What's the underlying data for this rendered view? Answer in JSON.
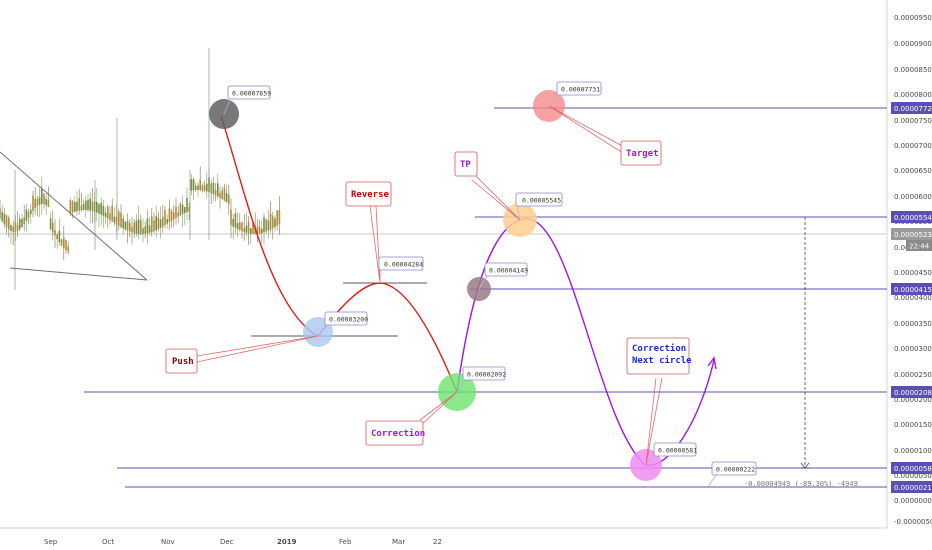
{
  "chart_data": {
    "type": "line",
    "title": "",
    "y_axis": {
      "position": "right",
      "ticks": [
        "0.00009500",
        "0.00009000",
        "0.00008500",
        "0.00008000",
        "0.00007500",
        "0.00007000",
        "0.00006500",
        "0.00006000",
        "0.00005500",
        "0.00005000",
        "0.00004500",
        "0.00004000",
        "0.00003500",
        "0.00003000",
        "0.00002500",
        "0.00002000",
        "0.00001500",
        "0.00001000",
        "0.00000500",
        "0.00000000",
        "-0.00000500"
      ]
    },
    "x_axis": {
      "ticks": [
        "Sep",
        "Oct",
        "Nov",
        "Dec",
        "2019",
        "Feb",
        "Mar",
        "22"
      ]
    },
    "price_badges": [
      {
        "value": "0.00007724",
        "color": "#5b4fb5"
      },
      {
        "value": "0.00005548",
        "color": "#5b4fb5"
      },
      {
        "value": "0.00005231",
        "color": "#9a9a9a"
      },
      {
        "value": "22:44",
        "color": "#8a8a8a"
      },
      {
        "value": "0.00004156",
        "color": "#5b4fb5"
      },
      {
        "value": "0.00002089",
        "color": "#5b4fb5"
      },
      {
        "value": "0.00000586",
        "color": "#5b4fb5"
      },
      {
        "value": "0.00000219",
        "color": "#5b4fb5"
      }
    ],
    "points": [
      {
        "label": "0.00007659",
        "color": "#606060"
      },
      {
        "label": "0.00003200",
        "color": "#aac8f0"
      },
      {
        "label": "0.00004284",
        "color": "#ffffff"
      },
      {
        "label": "0.00002092",
        "color": "#6de36d"
      },
      {
        "label": "0.00004149",
        "color": "#9c7b86"
      },
      {
        "label": "0.00005545",
        "color": "#ffcf8f"
      },
      {
        "label": "0.00007731",
        "color": "#f58a8a"
      },
      {
        "label": "0.00000581",
        "color": "#f08cf0"
      },
      {
        "label": "0.00000222",
        "color": "#ffffff"
      }
    ],
    "annotations": {
      "push": "Push",
      "reverse": "Reverse",
      "correction": "Correction",
      "tp": "TP",
      "target": "Target",
      "correction_next_line1": "Correction",
      "correction_next_line2": "Next circle"
    },
    "measure_text": "-0.00004949 (-89.30%) -4949",
    "colors": {
      "accent": "#5b4fb5",
      "red_path": "#e01b1b",
      "purple_path": "#9b19e0"
    }
  }
}
